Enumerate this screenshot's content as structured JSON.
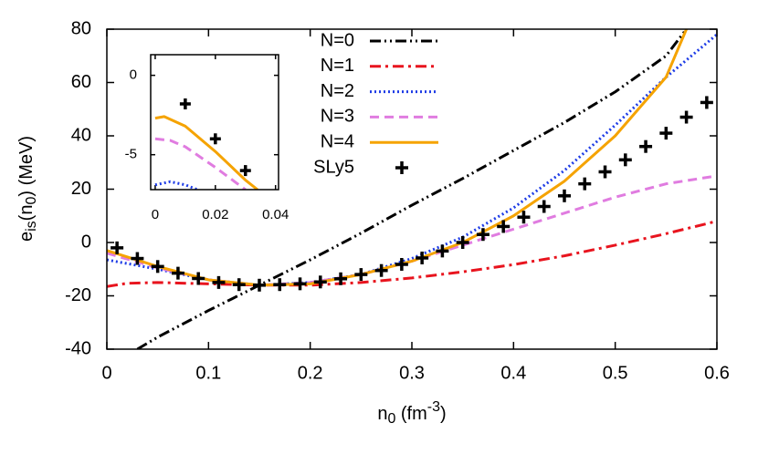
{
  "chart_data": [
    {
      "type": "line",
      "ylabel": [
        "e",
        "is",
        "(n",
        "0",
        ")  (MeV)"
      ],
      "xlabel": [
        "n",
        "0",
        "  (fm",
        "-3",
        ")"
      ],
      "xlim": [
        0,
        0.6
      ],
      "ylim": [
        -40,
        80
      ],
      "xticks": [
        0,
        0.1,
        0.2,
        0.3,
        0.4,
        0.5,
        0.6
      ],
      "yticks": [
        -40,
        -20,
        0,
        20,
        40,
        60,
        80
      ],
      "legend": "top-right",
      "series": [
        {
          "name": "N=0",
          "color": "#000000",
          "dash": "dashdotdot",
          "x": [
            0.03,
            0.05,
            0.1,
            0.15,
            0.2,
            0.25,
            0.3,
            0.35,
            0.4,
            0.45,
            0.5,
            0.55,
            0.57
          ],
          "values": [
            -40,
            -35.5,
            -25.5,
            -16,
            -6.5,
            3.5,
            14,
            24,
            34.5,
            45,
            56.5,
            70,
            80
          ]
        },
        {
          "name": "N=1",
          "color": "#e8141e",
          "dash": "dashdot",
          "x": [
            0,
            0.02,
            0.05,
            0.1,
            0.15,
            0.2,
            0.25,
            0.3,
            0.35,
            0.4,
            0.45,
            0.5,
            0.55,
            0.6
          ],
          "values": [
            -16.5,
            -15.3,
            -15,
            -15.5,
            -16,
            -16,
            -15,
            -13.3,
            -11,
            -8.3,
            -5,
            -1,
            3.3,
            8
          ]
        },
        {
          "name": "N=2",
          "color": "#1e3ce6",
          "dash": "dotted",
          "x": [
            0,
            0.05,
            0.1,
            0.15,
            0.2,
            0.25,
            0.3,
            0.35,
            0.4,
            0.45,
            0.5,
            0.55,
            0.6
          ],
          "values": [
            -6.5,
            -10,
            -14,
            -16,
            -15,
            -12,
            -6,
            2,
            13,
            27,
            44,
            62,
            78
          ]
        },
        {
          "name": "N=3",
          "color": "#e07ce0",
          "dash": "dashed",
          "x": [
            0,
            0.05,
            0.1,
            0.15,
            0.2,
            0.25,
            0.3,
            0.35,
            0.4,
            0.45,
            0.5,
            0.55,
            0.6
          ],
          "values": [
            -4,
            -9.5,
            -14,
            -16,
            -15,
            -12,
            -7,
            -1,
            5,
            11,
            17,
            22,
            25
          ]
        },
        {
          "name": "N=4",
          "color": "#f5a300",
          "dash": "solid",
          "x": [
            0,
            0.05,
            0.1,
            0.15,
            0.2,
            0.25,
            0.3,
            0.35,
            0.4,
            0.45,
            0.5,
            0.55,
            0.57
          ],
          "values": [
            -3,
            -9,
            -14,
            -16,
            -15.5,
            -12,
            -7,
            0,
            10,
            23,
            40,
            62,
            80
          ]
        },
        {
          "name": "SLy5",
          "color": "#000000",
          "dash": "plus",
          "x": [
            0.01,
            0.03,
            0.05,
            0.07,
            0.09,
            0.11,
            0.13,
            0.15,
            0.17,
            0.19,
            0.21,
            0.23,
            0.25,
            0.27,
            0.29,
            0.31,
            0.33,
            0.35,
            0.37,
            0.39,
            0.41,
            0.43,
            0.45,
            0.47,
            0.49,
            0.51,
            0.53,
            0.55,
            0.57,
            0.59
          ],
          "values": [
            -2,
            -6,
            -9,
            -11.5,
            -13.5,
            -15,
            -15.8,
            -16,
            -15.8,
            -15.5,
            -14.8,
            -13.6,
            -12,
            -10.5,
            -8.2,
            -5.8,
            -3.2,
            0,
            3,
            6,
            9.5,
            13.5,
            17.5,
            22,
            26.5,
            31,
            36,
            41,
            47,
            52.5
          ]
        }
      ]
    },
    {
      "type": "line",
      "xlim": [
        -0.0015,
        0.041
      ],
      "ylim": [
        -7.2,
        1.3
      ],
      "xticks": [
        0,
        0.02,
        0.04
      ],
      "yticks": [
        0,
        -5
      ],
      "series": [
        {
          "color": "#1e3ce6",
          "dash": "dotted",
          "x": [
            0,
            0.005,
            0.01,
            0.014
          ],
          "values": [
            -6.9,
            -6.7,
            -6.9,
            -7.2
          ]
        },
        {
          "color": "#e07ce0",
          "dash": "dashed",
          "x": [
            0,
            0.005,
            0.01,
            0.02,
            0.03
          ],
          "values": [
            -4,
            -4.1,
            -4.5,
            -5.8,
            -7.2
          ]
        },
        {
          "color": "#f5a300",
          "dash": "solid",
          "x": [
            0,
            0.003,
            0.01,
            0.02,
            0.03,
            0.034
          ],
          "values": [
            -2.7,
            -2.6,
            -3.2,
            -4.8,
            -6.6,
            -7.2
          ]
        },
        {
          "color": "#000000",
          "dash": "plus",
          "x": [
            0.01,
            0.02,
            0.03
          ],
          "values": [
            -1.8,
            -4,
            -6
          ]
        }
      ]
    }
  ]
}
